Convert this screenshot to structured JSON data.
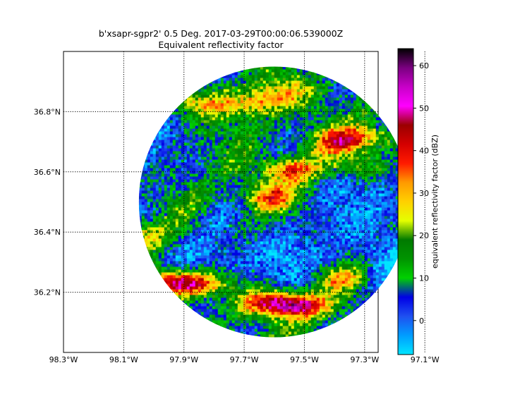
{
  "chart_data": {
    "type": "heatmap",
    "title": "b'xsapr-sgpr2' 0.5 Deg. 2017-03-29T00:00:06.539000Z",
    "subtitle": "Equivalent reflectivity factor",
    "x_ticks": [
      "98.3°W",
      "98.1°W",
      "97.9°W",
      "97.7°W",
      "97.5°W",
      "97.3°W",
      "97.1°W"
    ],
    "x_tick_values": [
      -98.3,
      -98.1,
      -97.9,
      -97.7,
      -97.5,
      -97.3,
      -97.1
    ],
    "y_ticks": [
      "36.2°N",
      "36.4°N",
      "36.6°N",
      "36.8°N"
    ],
    "y_tick_values": [
      36.2,
      36.4,
      36.6,
      36.8
    ],
    "xlim": [
      -98.3,
      -97.255
    ],
    "ylim": [
      36.0,
      37.0
    ],
    "grid": true,
    "grid_style": "dotted",
    "colorbar": {
      "label": "equivalent reflectivity factor (dBZ)",
      "ticks": [
        "0",
        "10",
        "20",
        "30",
        "40",
        "50",
        "60"
      ],
      "tick_values": [
        0,
        10,
        20,
        30,
        40,
        50,
        60
      ],
      "range": [
        -8,
        64
      ]
    },
    "radar_center": {
      "lon": -97.6,
      "lat": 36.5
    },
    "storms": [
      {
        "lon": -97.62,
        "lat": 36.17,
        "dbz": 42
      },
      {
        "lon": -97.52,
        "lat": 36.16,
        "dbz": 44
      },
      {
        "lon": -97.95,
        "lat": 36.24,
        "dbz": 40
      },
      {
        "lon": -97.85,
        "lat": 36.23,
        "dbz": 41
      },
      {
        "lon": -97.62,
        "lat": 36.52,
        "dbz": 33
      },
      {
        "lon": -97.55,
        "lat": 36.61,
        "dbz": 36
      },
      {
        "lon": -97.38,
        "lat": 36.7,
        "dbz": 34
      },
      {
        "lon": -97.3,
        "lat": 36.72,
        "dbz": 31
      },
      {
        "lon": -97.85,
        "lat": 36.83,
        "dbz": 28
      },
      {
        "lon": -97.67,
        "lat": 36.83,
        "dbz": 29
      },
      {
        "lon": -97.57,
        "lat": 36.87,
        "dbz": 26
      },
      {
        "lon": -98.07,
        "lat": 36.39,
        "dbz": 30
      },
      {
        "lon": -97.38,
        "lat": 36.25,
        "dbz": 28
      },
      {
        "lon": -97.32,
        "lat": 36.62,
        "dbz": 27
      }
    ],
    "low_zones": [
      {
        "lon": -98.07,
        "lat": 36.67
      },
      {
        "lon": -97.3,
        "lat": 36.55
      },
      {
        "lon": -97.52,
        "lat": 36.33
      },
      {
        "lon": -97.2,
        "lat": 36.35
      },
      {
        "lon": -97.8,
        "lat": 36.3
      }
    ]
  },
  "colors": {
    "colorbar_stops": [
      "#00e5ff",
      "#009dff",
      "#1f50f0",
      "#0000e6",
      "#00d000",
      "#009400",
      "#007a00",
      "#e5ff00",
      "#ffd000",
      "#ff9a00",
      "#ff1a00",
      "#d40000",
      "#9b0000",
      "#ff00ff",
      "#c800c8",
      "#7a0080",
      "#000000"
    ]
  }
}
